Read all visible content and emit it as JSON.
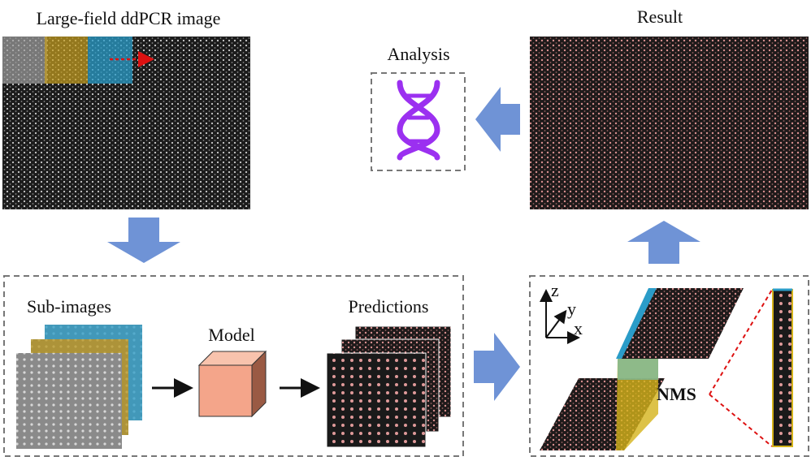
{
  "large_field": {
    "title": "Large-field ddPCR image"
  },
  "analysis": {
    "title": "Analysis"
  },
  "result": {
    "title": "Result"
  },
  "sub_images": {
    "title": "Sub-images"
  },
  "model": {
    "title": "Model"
  },
  "predictions": {
    "title": "Predictions"
  },
  "nms": {
    "label": "NMS",
    "axes": [
      "z",
      "y",
      "x"
    ]
  }
}
